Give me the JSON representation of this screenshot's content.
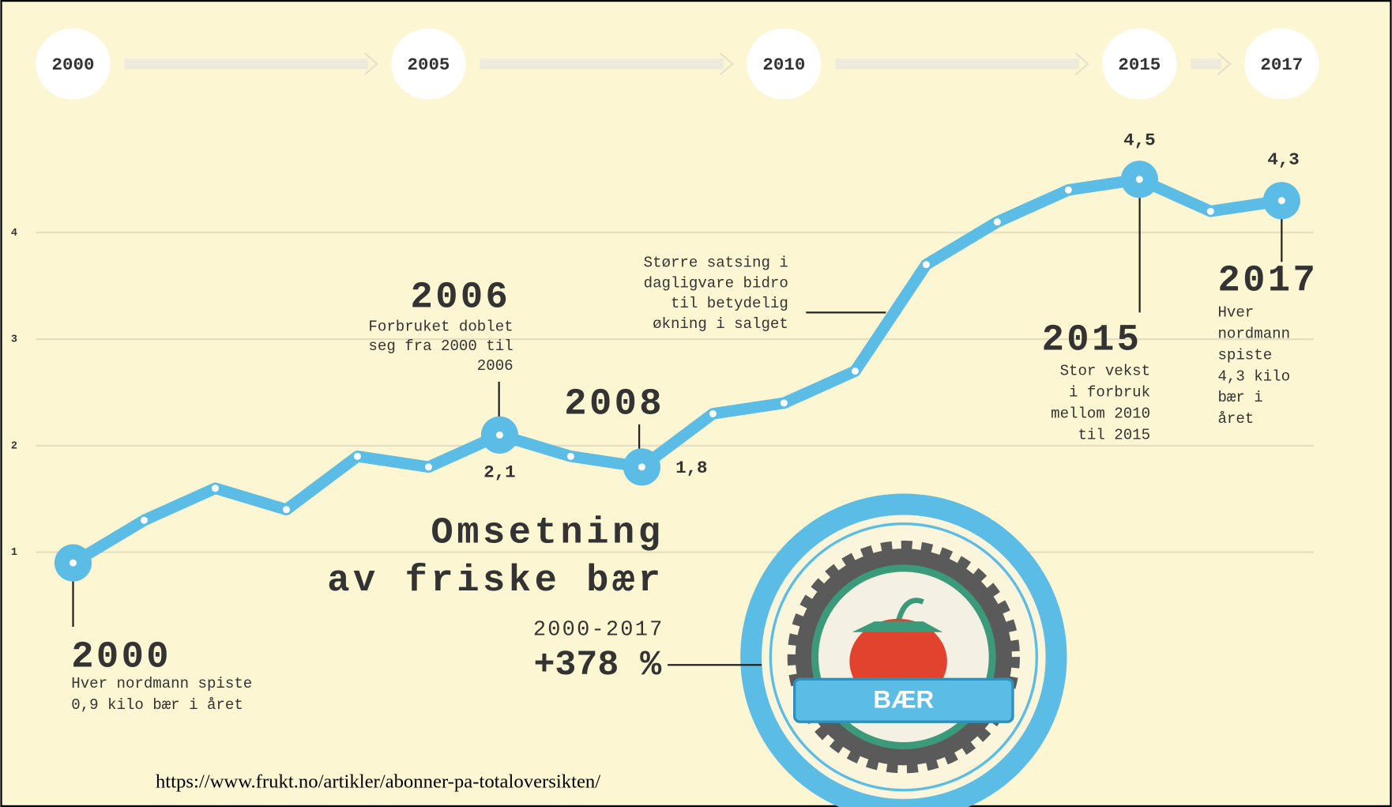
{
  "chart_data": {
    "type": "line",
    "title": [
      "Omsetning",
      "av friske bær"
    ],
    "subtitle": "2000-2017",
    "headline": "+378 %",
    "badge_label": "BÆR",
    "source": "https://www.frukt.no/artikler/abonner-pa-totaloversikten/",
    "x": [
      2000,
      2001,
      2002,
      2003,
      2004,
      2005,
      2006,
      2007,
      2008,
      2009,
      2010,
      2011,
      2012,
      2013,
      2014,
      2015,
      2016,
      2017
    ],
    "values": [
      0.9,
      1.3,
      1.6,
      1.4,
      1.9,
      1.8,
      2.1,
      1.9,
      1.8,
      2.3,
      2.4,
      2.7,
      3.7,
      4.1,
      4.4,
      4.5,
      4.2,
      4.3
    ],
    "value_labels": [
      null,
      null,
      null,
      null,
      null,
      null,
      "2,1",
      null,
      "1,8",
      null,
      null,
      null,
      null,
      null,
      null,
      "4,5",
      null,
      "4,3"
    ],
    "color": "#5bbde6",
    "xlim": [
      2000,
      2017
    ],
    "xticks": [
      2000,
      2005,
      2010,
      2015,
      2017
    ],
    "ylim": [
      0,
      5
    ],
    "yticks": [
      1,
      2,
      3,
      4
    ],
    "grid": true,
    "annotations": [
      {
        "heading": "2000",
        "text": [
          "Hver nordmann spiste",
          "0,9 kilo bær i året"
        ]
      },
      {
        "heading": "2006",
        "text": [
          "Forbruket doblet",
          "seg fra 2000 til",
          "2006"
        ]
      },
      {
        "heading": "2008",
        "text": []
      },
      {
        "heading": null,
        "text": [
          "Større satsing i",
          "dagligvare bidro",
          "til betydelig",
          "økning i salget"
        ]
      },
      {
        "heading": "2015",
        "text": [
          "Stor vekst",
          "i forbruk",
          "mellom 2010",
          "til 2015"
        ]
      },
      {
        "heading": "2017",
        "text": [
          "Hver",
          "nordmann",
          "spiste",
          "4,3 kilo",
          "bær i",
          "året"
        ]
      }
    ]
  }
}
